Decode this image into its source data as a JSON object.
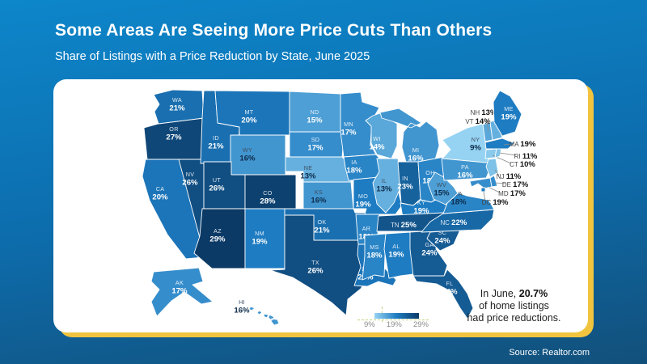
{
  "title": "Some Areas Are Seeing More Price Cuts Than Others",
  "subtitle": "Share of Listings with a Price Reduction by State, June 2025",
  "source": "Source: Realtor.com",
  "annotation": {
    "line1_prefix": "In June, ",
    "highlight": "20.7%",
    "line2": "of home listings",
    "line3": "had price reductions."
  },
  "legend": {
    "ticks": [
      "9%",
      "19%",
      "29%"
    ],
    "scale": {
      "min": 9,
      "mid": 19,
      "max": 29,
      "min_color": "#96d3f2",
      "mid_color": "#1e7cc2",
      "max_color": "#0b3a66"
    }
  },
  "colors": {
    "background_top": "#0d86ca",
    "background_bottom": "#12507b",
    "card": "#ffffff",
    "card_shadow_gold": "#f1c440",
    "state_border": "#ffffff",
    "dark_label": "#0d2b4a"
  },
  "chart_data": {
    "type": "choropleth",
    "title": "Some Areas Are Seeing More Price Cuts Than Others",
    "subtitle": "Share of Listings with a Price Reduction by State, June 2025",
    "unit": "percent of listings with a price reduction",
    "value_range": [
      9,
      29
    ],
    "national_value": 20.7,
    "states": [
      {
        "abbr": "WA",
        "value": 21
      },
      {
        "abbr": "OR",
        "value": 27
      },
      {
        "abbr": "CA",
        "value": 20
      },
      {
        "abbr": "NV",
        "value": 26
      },
      {
        "abbr": "ID",
        "value": 21
      },
      {
        "abbr": "MT",
        "value": 20
      },
      {
        "abbr": "WY",
        "value": 16
      },
      {
        "abbr": "UT",
        "value": 26
      },
      {
        "abbr": "CO",
        "value": 28
      },
      {
        "abbr": "AZ",
        "value": 29
      },
      {
        "abbr": "NM",
        "value": 19
      },
      {
        "abbr": "ND",
        "value": 15
      },
      {
        "abbr": "SD",
        "value": 17
      },
      {
        "abbr": "NE",
        "value": 13
      },
      {
        "abbr": "KS",
        "value": 16
      },
      {
        "abbr": "OK",
        "value": 21
      },
      {
        "abbr": "TX",
        "value": 26
      },
      {
        "abbr": "MN",
        "value": 17
      },
      {
        "abbr": "IA",
        "value": 18
      },
      {
        "abbr": "MO",
        "value": 19
      },
      {
        "abbr": "AR",
        "value": 18
      },
      {
        "abbr": "LA",
        "value": 20
      },
      {
        "abbr": "WI",
        "value": 14
      },
      {
        "abbr": "IL",
        "value": 13
      },
      {
        "abbr": "MI",
        "value": 16
      },
      {
        "abbr": "IN",
        "value": 23
      },
      {
        "abbr": "OH",
        "value": 18
      },
      {
        "abbr": "KY",
        "value": 19
      },
      {
        "abbr": "TN",
        "value": 25
      },
      {
        "abbr": "MS",
        "value": 18
      },
      {
        "abbr": "AL",
        "value": 19
      },
      {
        "abbr": "GA",
        "value": 24
      },
      {
        "abbr": "FL",
        "value": 24
      },
      {
        "abbr": "SC",
        "value": 24
      },
      {
        "abbr": "NC",
        "value": 22
      },
      {
        "abbr": "VA",
        "value": 18
      },
      {
        "abbr": "WV",
        "value": 15
      },
      {
        "abbr": "PA",
        "value": 16
      },
      {
        "abbr": "NY",
        "value": 9
      },
      {
        "abbr": "NJ",
        "value": 11
      },
      {
        "abbr": "CT",
        "value": 10
      },
      {
        "abbr": "RI",
        "value": 11
      },
      {
        "abbr": "MA",
        "value": 19
      },
      {
        "abbr": "VT",
        "value": 14
      },
      {
        "abbr": "NH",
        "value": 13
      },
      {
        "abbr": "ME",
        "value": 19
      },
      {
        "abbr": "DE",
        "value": 17
      },
      {
        "abbr": "MD",
        "value": 17
      },
      {
        "abbr": "DC",
        "value": 19
      },
      {
        "abbr": "AK",
        "value": 17
      },
      {
        "abbr": "HI",
        "value": 16
      }
    ]
  }
}
